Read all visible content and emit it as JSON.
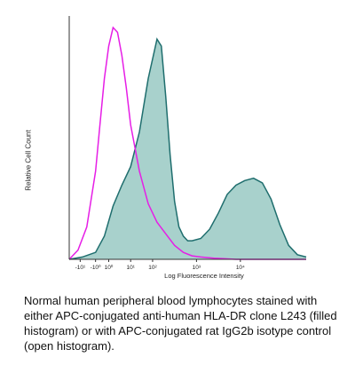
{
  "chart_data": {
    "type": "area",
    "ylabel": "Relative Cell Count",
    "xlabel": "Log Fluorescence Intensity",
    "x_scale": "log",
    "xlim": [
      -0.8,
      4.6
    ],
    "ylim": [
      0,
      1.05
    ],
    "x_tick_labels": [
      "-10¹",
      "-10⁰",
      "10⁰",
      "10¹",
      "10²",
      "10³",
      "10⁴"
    ],
    "x_tick_positions": [
      -0.55,
      -0.2,
      0.1,
      0.6,
      1.1,
      2.1,
      3.1
    ],
    "grid": false,
    "legend": "none",
    "series": [
      {
        "style": "filled",
        "line_color": "#1f6e6e",
        "fill_color": "#a8d1cc",
        "x": [
          -0.8,
          -0.5,
          -0.2,
          0.0,
          0.2,
          0.4,
          0.6,
          0.8,
          1.0,
          1.2,
          1.3,
          1.4,
          1.5,
          1.6,
          1.7,
          1.8,
          1.9,
          2.0,
          2.2,
          2.4,
          2.6,
          2.8,
          3.0,
          3.2,
          3.4,
          3.6,
          3.8,
          4.0,
          4.2,
          4.4,
          4.6
        ],
        "y": [
          0.0,
          0.01,
          0.03,
          0.1,
          0.23,
          0.32,
          0.4,
          0.55,
          0.78,
          0.95,
          0.92,
          0.7,
          0.45,
          0.25,
          0.14,
          0.1,
          0.08,
          0.08,
          0.09,
          0.13,
          0.2,
          0.28,
          0.32,
          0.34,
          0.35,
          0.33,
          0.26,
          0.15,
          0.06,
          0.02,
          0.01
        ]
      },
      {
        "style": "open",
        "line_color": "#e61ee6",
        "x": [
          -0.8,
          -0.6,
          -0.4,
          -0.2,
          -0.1,
          0.0,
          0.1,
          0.2,
          0.3,
          0.4,
          0.5,
          0.6,
          0.8,
          1.0,
          1.2,
          1.4,
          1.6,
          1.8,
          2.0,
          2.2,
          2.5,
          3.0,
          3.5,
          4.0,
          4.6
        ],
        "y": [
          0.0,
          0.04,
          0.14,
          0.38,
          0.58,
          0.78,
          0.92,
          1.0,
          0.98,
          0.88,
          0.74,
          0.58,
          0.38,
          0.24,
          0.16,
          0.11,
          0.06,
          0.03,
          0.015,
          0.01,
          0.005,
          0.0,
          0.0,
          0.0,
          0.0
        ]
      }
    ]
  },
  "caption": "Normal human peripheral blood lymphocytes stained with either APC-conjugated anti-human HLA-DR clone L243 (filled histogram) or with APC-conjugated rat IgG2b isotype control (open histogram)."
}
